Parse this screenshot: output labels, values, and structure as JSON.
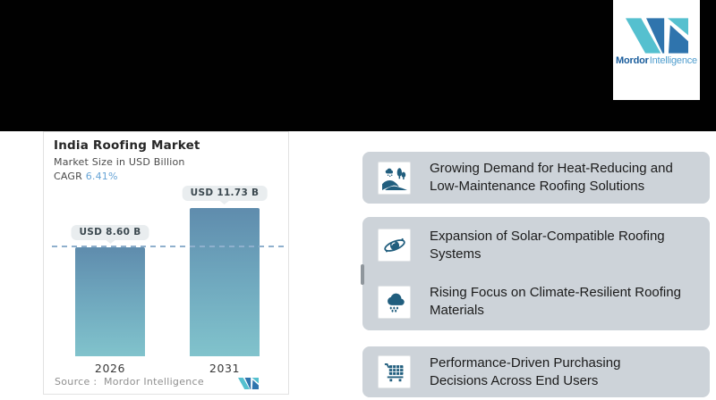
{
  "brand": {
    "logo_bold": "Mordor",
    "logo_light": "Intelligence",
    "teal": "#55c0cf",
    "blue": "#2f74ad"
  },
  "chart_card": {
    "title": "India Roofing Market",
    "subtitle": "Market Size in USD Billion",
    "cagr_label": "CAGR",
    "cagr_value": "6.41%",
    "cagr_color": "#67a4d6",
    "source_label": "Source :",
    "source_value": "Mordor Intelligence"
  },
  "chart_data": {
    "type": "bar",
    "title": "India Roofing Market",
    "subtitle": "Market Size in USD Billion",
    "unit": "USD Billion",
    "cagr_percent": 6.41,
    "categories": [
      "2026",
      "2031"
    ],
    "values": [
      8.6,
      11.73
    ],
    "data_labels": [
      "USD 8.60 B",
      "USD 11.73 B"
    ],
    "ylim": [
      0,
      12
    ],
    "grid": false,
    "legend": false,
    "bar_gradient": [
      "#5f8cad",
      "#81c3cc"
    ],
    "reference_line": {
      "style": "dashed",
      "at_value": 8.6,
      "color": "#8fb0cd"
    }
  },
  "drivers": {
    "card_bg": "#cdd3d9",
    "icon_color": "#215e7e",
    "items": [
      {
        "icon": "landscape-icon",
        "text": "Growing Demand for Heat-Reducing and\nLow-Maintenance Roofing Solutions"
      },
      {
        "icon": "galaxy-icon",
        "text": "Expansion of Solar-Compatible Roofing\nSystems"
      },
      {
        "icon": "rain-cloud-icon",
        "text": "Rising Focus on Climate-Resilient Roofing\nMaterials"
      },
      {
        "icon": "shopping-cart-icon",
        "text": "Performance-Driven Purchasing\nDecisions Across End Users"
      }
    ]
  }
}
